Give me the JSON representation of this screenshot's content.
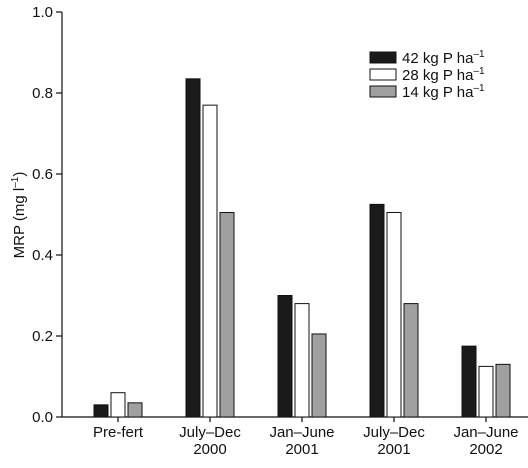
{
  "chart_data": {
    "type": "bar",
    "y_label": [
      "MRP (mg l",
      "–1",
      ")"
    ],
    "categories": [
      [
        "Pre-fert"
      ],
      [
        "July–Dec",
        "2000"
      ],
      [
        "Jan–June",
        "2001"
      ],
      [
        "July–Dec",
        "2001"
      ],
      [
        "Jan–June",
        "2002"
      ]
    ],
    "series": [
      {
        "name": [
          "42 kg P ha",
          "–1"
        ],
        "color": "#1a1a1a",
        "values": [
          0.03,
          0.835,
          0.3,
          0.525,
          0.175
        ]
      },
      {
        "name": [
          "28 kg P ha",
          "–1"
        ],
        "color": "#ffffff",
        "values": [
          0.06,
          0.77,
          0.28,
          0.505,
          0.125
        ]
      },
      {
        "name": [
          "14 kg P ha",
          "–1"
        ],
        "color": "#a0a0a0",
        "values": [
          0.035,
          0.505,
          0.205,
          0.28,
          0.13
        ]
      }
    ],
    "ylim": [
      0,
      1
    ],
    "yticks": [
      {
        "value": 0,
        "label": "0.0"
      },
      0.2,
      0.4,
      0.6,
      0.8,
      {
        "value": 1,
        "label": "1.0"
      }
    ],
    "legend": "upper right"
  }
}
